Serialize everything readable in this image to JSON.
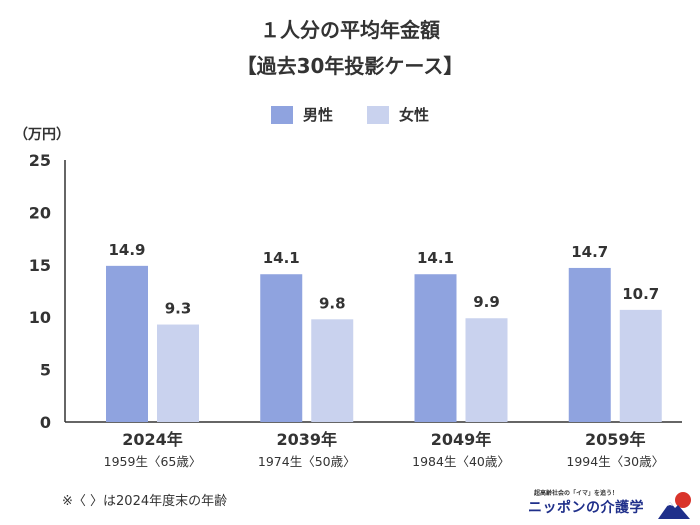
{
  "title_line1": "１人分の平均年金額",
  "title_line2": "【過去30年投影ケース】",
  "unit_label": "（万円）",
  "footnote": "※〈 〉は2024年度末の年齢",
  "brand": {
    "tagline": "超高齢社会の「イマ」を追う！",
    "name": "ニッポンの介護学",
    "logo_icon": "mountain-sun-icon"
  },
  "colors": {
    "male": "#8fa3df",
    "female": "#c9d2ee",
    "axis": "#333333",
    "text": "#333333",
    "brand_navy": "#1f2f8a",
    "brand_red": "#d9342b"
  },
  "chart_data": {
    "type": "bar",
    "categories": [
      "2024年",
      "2039年",
      "2049年",
      "2059年"
    ],
    "sublabels": [
      "1959生〈65歳〉",
      "1974生〈50歳〉",
      "1984生〈40歳〉",
      "1994生〈30歳〉"
    ],
    "series": [
      {
        "name": "男性",
        "values": [
          14.9,
          14.1,
          14.1,
          14.7
        ]
      },
      {
        "name": "女性",
        "values": [
          9.3,
          9.8,
          9.9,
          10.7
        ]
      }
    ],
    "yticks": [
      "0",
      "5",
      "10",
      "15",
      "20",
      "25"
    ],
    "ylim": [
      0,
      25
    ],
    "legend_position": "top-center",
    "grid": false
  }
}
